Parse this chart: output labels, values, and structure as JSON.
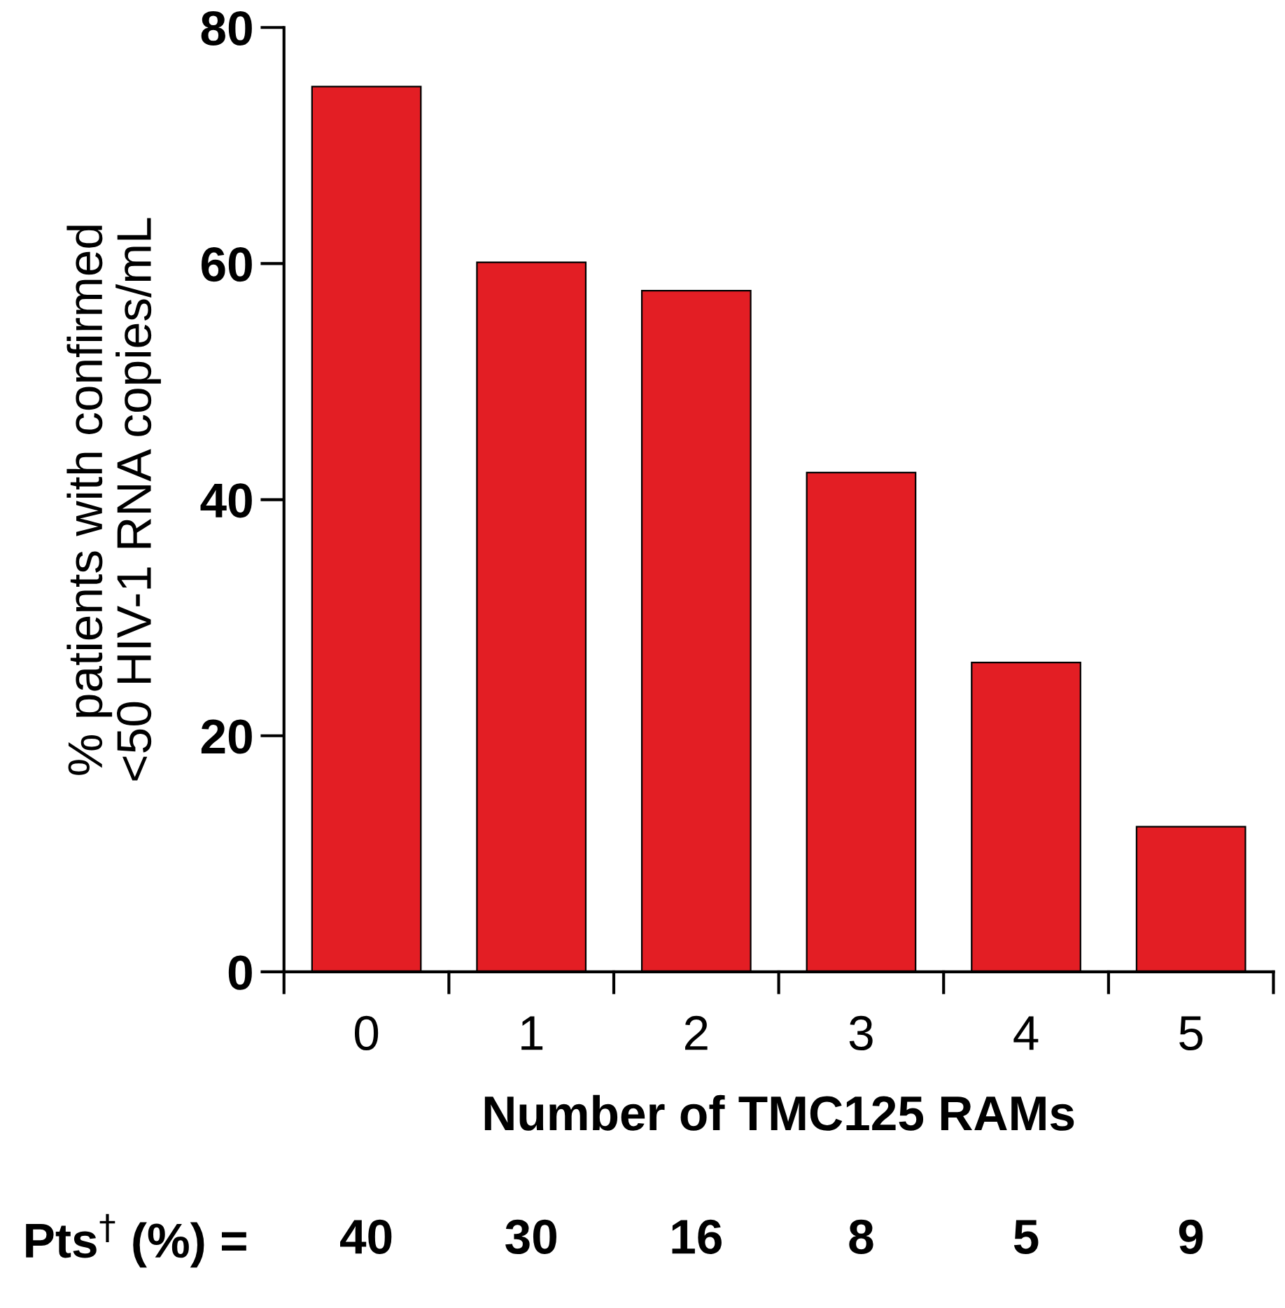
{
  "chart_data": {
    "type": "bar",
    "categories": [
      "0",
      "1",
      "2",
      "3",
      "4",
      "5"
    ],
    "values": [
      75.0,
      60.1,
      57.7,
      42.3,
      26.2,
      12.3
    ],
    "color": "#e31e24",
    "ylim": [
      0,
      80
    ],
    "yticks": [
      0,
      20,
      40,
      60,
      80
    ],
    "xlabel": "Number of TMC125 RAMs",
    "ylabel": "% patients with confirmed\n<50 HIV-1 RNA copies/mL",
    "annotations": [
      "Pts$^{†}$ (%) =",
      "40",
      "30",
      "16",
      "8",
      "5",
      "9"
    ],
    "grid": false,
    "legend": false
  }
}
